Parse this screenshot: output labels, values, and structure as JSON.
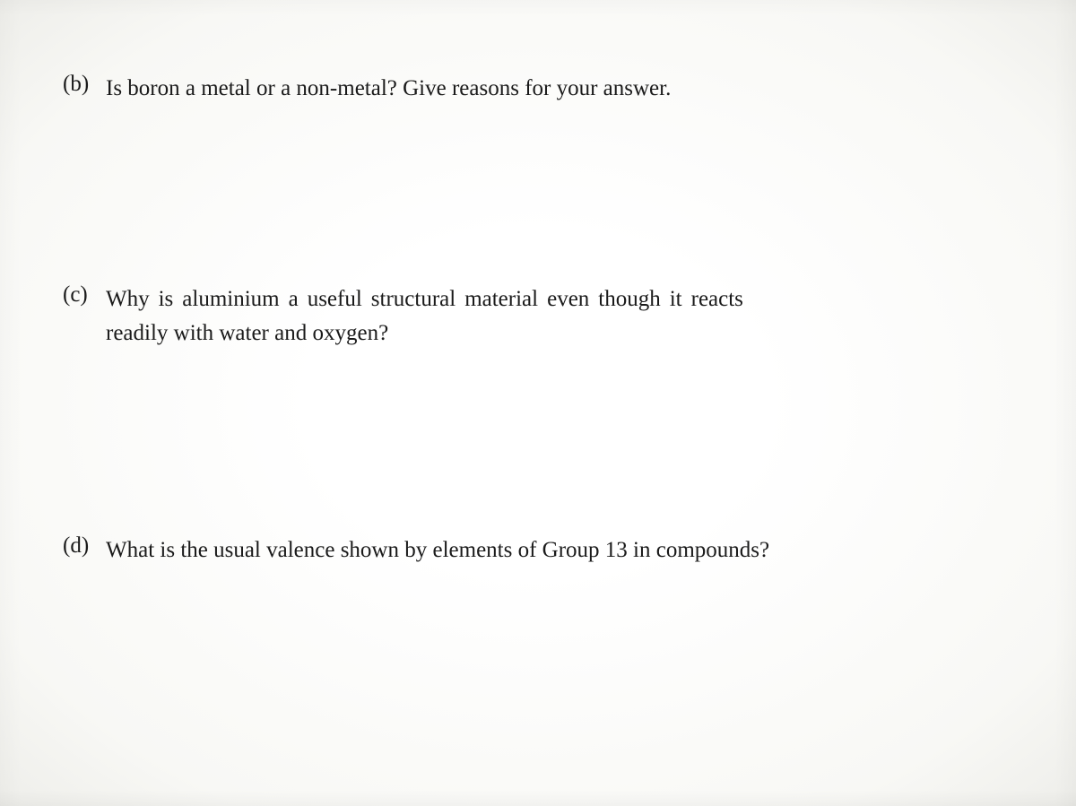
{
  "page": {
    "background_color": "#fdfdfb",
    "text_color": "#1a1a1a",
    "font_family": "Times New Roman",
    "font_size_pt": 19
  },
  "questions": {
    "b": {
      "label": "(b)",
      "text": "Is boron a metal or a non-metal?  Give reasons for your answer."
    },
    "c": {
      "label": "(c)",
      "text_line1": "Why  is  aluminium  a  useful  structural  material  even  though  it  reacts",
      "text_line2": "readily with water and oxygen?"
    },
    "d": {
      "label": "(d)",
      "text": "What is the usual valence shown by elements of Group 13 in compounds?"
    }
  }
}
